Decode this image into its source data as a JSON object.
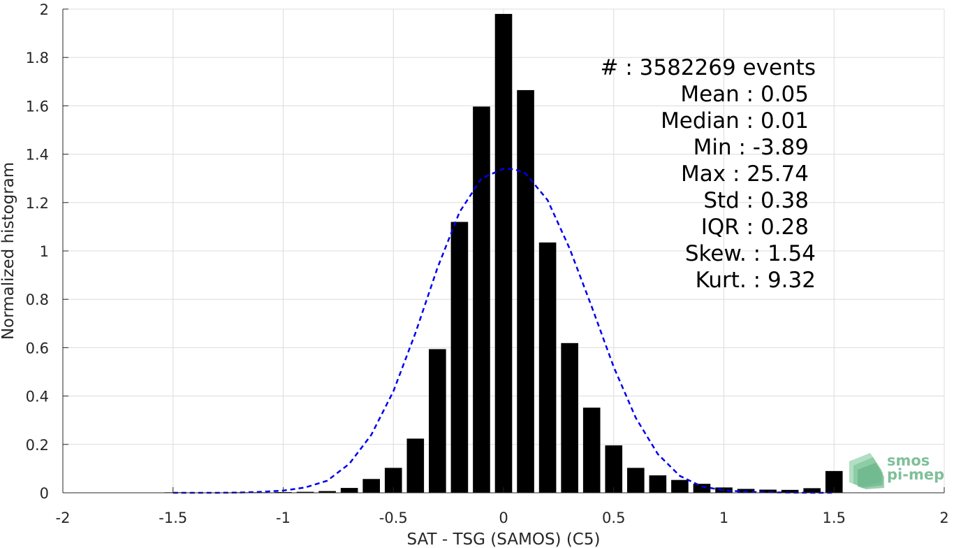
{
  "chart_data": {
    "type": "bar",
    "xlabel": "SAT - TSG (SAMOS) (C5)",
    "ylabel": "Normalized histogram",
    "xlim": [
      -2,
      2
    ],
    "ylim": [
      0,
      2
    ],
    "grid": true,
    "xticks": [
      -2,
      -1.5,
      -1,
      -0.5,
      0,
      0.5,
      1,
      1.5,
      2
    ],
    "xtick_labels": [
      "-2",
      "-1.5",
      "-1",
      "-0.5",
      "0",
      "0.5",
      "1",
      "1.5",
      "2"
    ],
    "yticks": [
      0,
      0.2,
      0.4,
      0.6,
      0.8,
      1,
      1.2,
      1.4,
      1.6,
      1.8,
      2
    ],
    "ytick_labels": [
      "0",
      "0.2",
      "0.4",
      "0.6",
      "0.8",
      "1",
      "1.2",
      "1.4",
      "1.6",
      "1.8",
      "2"
    ],
    "bars": {
      "x": [
        -1.5,
        -1.4,
        -1.3,
        -1.2,
        -1.1,
        -1.0,
        -0.9,
        -0.8,
        -0.7,
        -0.6,
        -0.5,
        -0.4,
        -0.3,
        -0.2,
        -0.1,
        0.0,
        0.1,
        0.2,
        0.3,
        0.4,
        0.5,
        0.6,
        0.7,
        0.8,
        0.9,
        1.0,
        1.1,
        1.2,
        1.3,
        1.4,
        1.5
      ],
      "values": [
        0.002,
        0.001,
        0.001,
        0.002,
        0.002,
        0.003,
        0.004,
        0.007,
        0.02,
        0.057,
        0.103,
        0.224,
        0.594,
        1.12,
        1.597,
        1.98,
        1.665,
        1.035,
        0.619,
        0.352,
        0.196,
        0.103,
        0.072,
        0.053,
        0.037,
        0.022,
        0.016,
        0.013,
        0.012,
        0.019,
        0.09
      ],
      "color": "#000000"
    },
    "fit_curve": {
      "style": "dashed",
      "color": "#0000ee",
      "x": [
        -1.5,
        -1.4,
        -1.3,
        -1.2,
        -1.1,
        -1.0,
        -0.9,
        -0.8,
        -0.7,
        -0.6,
        -0.5,
        -0.4,
        -0.3,
        -0.2,
        -0.1,
        0.0,
        0.05,
        0.1,
        0.2,
        0.3,
        0.4,
        0.5,
        0.6,
        0.7,
        0.8,
        0.9,
        1.0,
        1.1,
        1.2,
        1.3,
        1.4,
        1.5
      ],
      "y": [
        0.0,
        0.0,
        0.0,
        0.001,
        0.004,
        0.009,
        0.022,
        0.05,
        0.12,
        0.24,
        0.42,
        0.66,
        0.93,
        1.16,
        1.3,
        1.34,
        1.338,
        1.32,
        1.21,
        1.01,
        0.77,
        0.52,
        0.31,
        0.16,
        0.07,
        0.026,
        0.01,
        0.004,
        0.002,
        0.001,
        0.0,
        0.0
      ]
    },
    "stats": [
      {
        "label": "#  : 3582269 events"
      },
      {
        "label": "Mean : 0.05"
      },
      {
        "label": "Median : 0.01"
      },
      {
        "label": "Min : -3.89"
      },
      {
        "label": "Max : 25.74"
      },
      {
        "label": "Std : 0.38"
      },
      {
        "label": "IQR : 0.28"
      },
      {
        "label": "Skew. : 1.54"
      },
      {
        "label": "Kurt. : 9.32"
      }
    ]
  },
  "logo": {
    "line1": "smos",
    "line2": "pi-mep",
    "color": "#7fbf9a"
  }
}
